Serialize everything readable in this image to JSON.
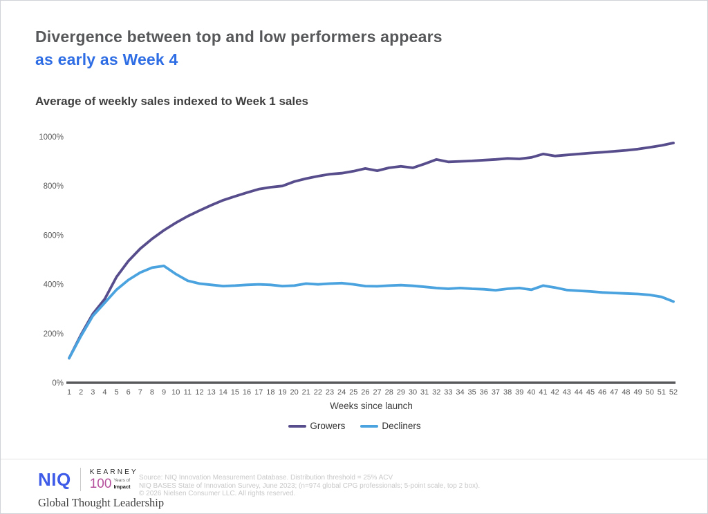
{
  "page": {
    "title_line1": "Divergence between top and low performers appears",
    "title_line2": "as early as Week 4",
    "subtitle": "Average of weekly sales indexed to Week 1 sales"
  },
  "chart_data": {
    "type": "line",
    "title": "Average of weekly sales indexed to Week 1 sales",
    "xlabel": "Weeks since launch",
    "ylabel": "",
    "xlim": [
      1,
      52
    ],
    "ylim": [
      0,
      1000
    ],
    "ytick_values": [
      0,
      200,
      400,
      600,
      800,
      1000
    ],
    "ytick_labels": [
      "0%",
      "200%",
      "400%",
      "600%",
      "800%",
      "1000%"
    ],
    "grid": false,
    "legend_position": "bottom",
    "x": [
      1,
      2,
      3,
      4,
      5,
      6,
      7,
      8,
      9,
      10,
      11,
      12,
      13,
      14,
      15,
      16,
      17,
      18,
      19,
      20,
      21,
      22,
      23,
      24,
      25,
      26,
      27,
      28,
      29,
      30,
      31,
      32,
      33,
      34,
      35,
      36,
      37,
      38,
      39,
      40,
      41,
      42,
      43,
      44,
      45,
      46,
      47,
      48,
      49,
      50,
      51,
      52
    ],
    "series": [
      {
        "name": "Growers",
        "color": "#584d8c",
        "values": [
          100,
          195,
          280,
          340,
          430,
          495,
          545,
          585,
          620,
          650,
          677,
          700,
          722,
          742,
          758,
          773,
          787,
          795,
          800,
          818,
          830,
          840,
          848,
          852,
          860,
          871,
          862,
          874,
          880,
          874,
          890,
          908,
          898,
          900,
          902,
          905,
          908,
          912,
          910,
          916,
          930,
          922,
          926,
          930,
          934,
          937,
          941,
          945,
          950,
          957,
          965,
          975
        ]
      },
      {
        "name": "Decliners",
        "color": "#4aa2de",
        "values": [
          100,
          190,
          272,
          325,
          378,
          418,
          448,
          468,
          475,
          442,
          415,
          403,
          398,
          393,
          395,
          398,
          400,
          398,
          393,
          395,
          403,
          400,
          403,
          405,
          400,
          393,
          392,
          395,
          397,
          394,
          390,
          385,
          382,
          385,
          382,
          380,
          376,
          382,
          385,
          378,
          395,
          387,
          377,
          374,
          371,
          367,
          365,
          363,
          361,
          357,
          349,
          330
        ]
      }
    ]
  },
  "footer": {
    "niq_logo": "NIQ",
    "kearney_name": "KEARNEY",
    "kearney_100": "100",
    "kearney_yearsof": "Years of",
    "kearney_impact": "Impact",
    "tagline": "Global Thought Leadership",
    "source_line1": "Source: NIQ Innovation Measurement Database. Distribution threshold = 25% ACV",
    "source_line2": "NIQ BASES State of Innovation Survey, June 2023; (n=974 global CPG professionals; 5-point scale, top 2 box).",
    "source_line3": "© 2026 Nielsen Consumer LLC. All rights reserved."
  },
  "colors": {
    "title_gray": "#57585a",
    "title_blue": "#2e6de4",
    "axis_text": "#595959",
    "axis_line": "#58595b",
    "growers_purple": "#584d8c",
    "decliners_blue": "#4aa2de",
    "niq_blue": "#3f5ce8",
    "kearney_pink": "#b5509c",
    "source_text": "#c8c8c8"
  }
}
